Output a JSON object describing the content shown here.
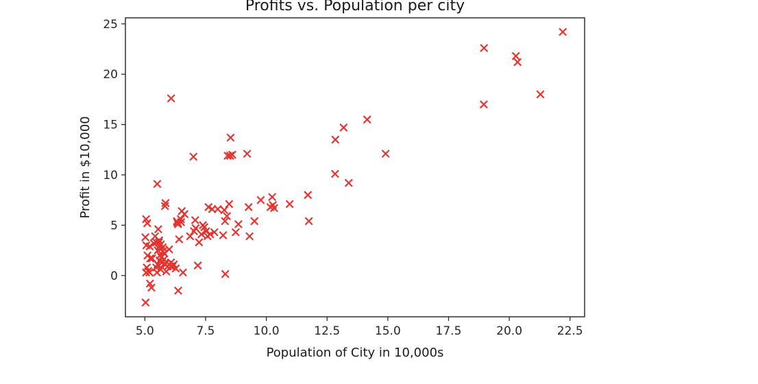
{
  "chart_data": {
    "type": "scatter",
    "title": "Profits vs. Population per city",
    "xlabel": "Population of City in 10,000s",
    "ylabel": "Profit in $10,000",
    "xlim": [
      4.2,
      23.1
    ],
    "ylim": [
      -4.1,
      25.6
    ],
    "xticks": [
      5.0,
      7.5,
      10.0,
      12.5,
      15.0,
      17.5,
      20.0,
      22.5
    ],
    "xtick_labels": [
      "5.0",
      "7.5",
      "10.0",
      "12.5",
      "15.0",
      "17.5",
      "20.0",
      "22.5"
    ],
    "yticks": [
      0,
      5,
      10,
      15,
      20,
      25
    ],
    "ytick_labels": [
      "0",
      "5",
      "10",
      "15",
      "20",
      "25"
    ],
    "grid": false,
    "marker": "x",
    "color": "#e3342f",
    "x": [
      5.03,
      5.05,
      5.1,
      5.02,
      5.06,
      5.11,
      5.14,
      5.19,
      5.21,
      5.27,
      5.3,
      5.37,
      5.42,
      5.47,
      5.5,
      5.52,
      5.55,
      5.58,
      5.6,
      5.63,
      5.65,
      5.68,
      5.71,
      5.74,
      5.78,
      5.83,
      5.88,
      5.94,
      6.0,
      6.08,
      6.14,
      6.19,
      6.27,
      6.33,
      6.37,
      6.41,
      6.48,
      6.52,
      6.57,
      5.59,
      5.66,
      5.73,
      5.81,
      5.47,
      5.85,
      5.83,
      6.07,
      6.32,
      6.36,
      6.49,
      6.63,
      6.86,
      7.02,
      7.07,
      7.18,
      7.23,
      7.33,
      7.39,
      7.45,
      7.52,
      7.58,
      7.62,
      7.69,
      7.77,
      7.86,
      8.0,
      8.22,
      8.3,
      8.38,
      8.31,
      8.47,
      8.74,
      8.85,
      9.27,
      9.31,
      9.51,
      9.77,
      10.17,
      10.24,
      10.27,
      10.32,
      10.96,
      11.71,
      11.75,
      8.41,
      8.51,
      8.6,
      8.53,
      9.21,
      7.0,
      5.51,
      6.08,
      7.09,
      6.36,
      8.27,
      12.84,
      12.83,
      13.18,
      13.39,
      14.15,
      14.91,
      18.96,
      18.95,
      20.27,
      20.34,
      21.28,
      22.2,
      5.2,
      5.22,
      5.05,
      5.08,
      5.53,
      5.61,
      5.8
    ],
    "y": [
      -2.68,
      5.6,
      5.2,
      3.8,
      3.0,
      1.99,
      0.45,
      0.3,
      -0.8,
      -1.2,
      1.7,
      3.2,
      3.9,
      0.8,
      0.3,
      1.1,
      4.6,
      3.3,
      2.9,
      2.0,
      0.6,
      1.8,
      1.3,
      2.4,
      1.6,
      1.1,
      0.4,
      0.9,
      2.6,
      1.3,
      0.9,
      1.1,
      0.7,
      5.3,
      -1.5,
      3.6,
      5.6,
      6.4,
      0.3,
      3.5,
      3.1,
      2.8,
      1.2,
      3.3,
      7.2,
      6.9,
      0.9,
      5.4,
      5.2,
      5.3,
      6.1,
      3.9,
      4.4,
      5.5,
      1.0,
      3.3,
      4.1,
      5.0,
      4.8,
      4.4,
      3.9,
      6.8,
      4.1,
      6.6,
      4.3,
      6.6,
      4.0,
      5.4,
      5.9,
      0.15,
      7.1,
      4.3,
      5.1,
      6.8,
      3.9,
      5.4,
      7.5,
      6.8,
      7.8,
      7.0,
      6.7,
      7.1,
      8.0,
      5.4,
      11.9,
      11.9,
      12.0,
      13.7,
      12.1,
      11.8,
      9.1,
      17.6,
      4.7,
      5.1,
      6.5,
      13.5,
      10.1,
      14.7,
      9.2,
      15.5,
      12.1,
      22.6,
      17.0,
      21.8,
      21.2,
      18.0,
      24.2,
      2.9,
      1.7,
      0.3,
      0.8,
      2.5,
      1.5,
      2.2
    ]
  }
}
